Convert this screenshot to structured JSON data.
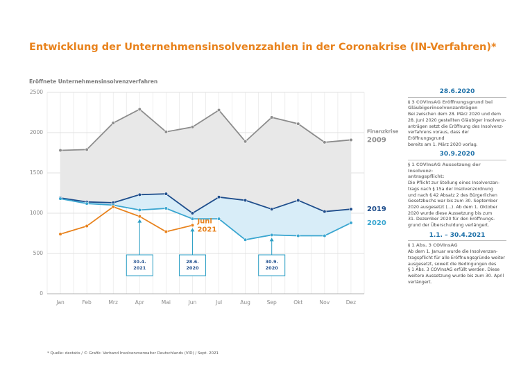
{
  "chart_data": {
    "type": "line",
    "title": "Entwicklung der Unternehmensinsolvenzzahlen in der Coronakrise (IN-Verfahren)*",
    "y_label": "Eröffnete Unternehmensinsolvenzverfahren",
    "categories": [
      "Jan",
      "Feb",
      "Mrz",
      "Apr",
      "Mai",
      "Jun",
      "Jul",
      "Aug",
      "Sep",
      "Okt",
      "Nov",
      "Dez"
    ],
    "ylim": [
      0,
      2500
    ],
    "yticks": [
      0,
      500,
      1000,
      1500,
      2000,
      2500
    ],
    "grid": true,
    "series": [
      {
        "name": [
          "Finanzkrise",
          "2009"
        ],
        "color": "#8c8c8c",
        "fill": "#e8e8e8",
        "values": [
          1780,
          1790,
          2120,
          2290,
          2010,
          2070,
          2280,
          1890,
          2190,
          2110,
          1880,
          1910
        ]
      },
      {
        "name": [
          "2019"
        ],
        "color": "#1f4e8c",
        "fill": "#d8edf8",
        "values": [
          1190,
          1140,
          1130,
          1230,
          1240,
          1000,
          1200,
          1160,
          1050,
          1160,
          1020,
          1050
        ]
      },
      {
        "name": [
          "2020"
        ],
        "color": "#3aa6d0",
        "values": [
          1180,
          1120,
          1100,
          1040,
          1060,
          930,
          930,
          670,
          730,
          720,
          720,
          880
        ]
      },
      {
        "name": [
          "Juni",
          "2021"
        ],
        "color": "#e8821c",
        "values": [
          740,
          840,
          1080,
          960,
          770,
          850,
          null,
          null,
          null,
          null,
          null,
          null
        ]
      }
    ],
    "annotations": [
      {
        "text": [
          "30.4.",
          "2021"
        ],
        "category": "Apr",
        "target": 3
      },
      {
        "text": [
          "28.6.",
          "2020"
        ],
        "category": "Jun",
        "target": 3
      },
      {
        "text": [
          "30.9.",
          "2020"
        ],
        "category": "Sep",
        "target": 2
      }
    ]
  },
  "notes": [
    {
      "heading": "28.6.2020",
      "sub": [
        "§ 3 COVInsAG Eröffnungsgrund bei",
        "Gläubigerinsolvenzanträgen"
      ],
      "body": [
        "Bei zwischen dem 28. März 2020 und dem",
        "28. Juni 2020 gestellten Gläubiger insolvenz-",
        "anträgen setzt die Eröffnung des Insolvenz-",
        "verfahrens voraus, dass der Eröffnungsgrund",
        "bereits am 1. März 2020 vorlag."
      ]
    },
    {
      "heading": "30.9.2020",
      "sub": [
        "§ 1 COVInsAG Aussetzung der Insolvenz-",
        "antragspflicht:"
      ],
      "body": [
        "Die Pflicht zur Stellung eines Insolvenzan-",
        "trags nach § 15a der Insolvenzordnung",
        "und nach § 42 Absatz 2 des Bürgerlichen",
        "Gesetzbuchs war bis zum 30. September",
        "2020 ausgesetzt (...). Ab dem 1. Oktober",
        "2020 wurde diese Aussetzung bis zum",
        "31. Dezember 2020 für den Eröffnungs-",
        "grund der Überschuldung verlängert."
      ]
    },
    {
      "heading": "1.1. – 30.4.2021",
      "sub": [
        "§ 1 Abs. 3 COVInsAG"
      ],
      "body": [
        "Ab dem 1. Januar wurde die Insolvenzan-",
        "tragspflicht für alle Eröffnungsgründe weiter",
        "ausgesetzt, soweit die Bedingungen des",
        "§ 1 Abs. 3 COVInsAG erfüllt werden. Diese",
        "weitere Aussetzung wurde bis zum 30. April",
        "verlängert."
      ]
    }
  ],
  "footnote": "* Quelle: destatis / © Grafik: Verband Insolvenzverwalter Deutschlands (VID) / Sept. 2021"
}
